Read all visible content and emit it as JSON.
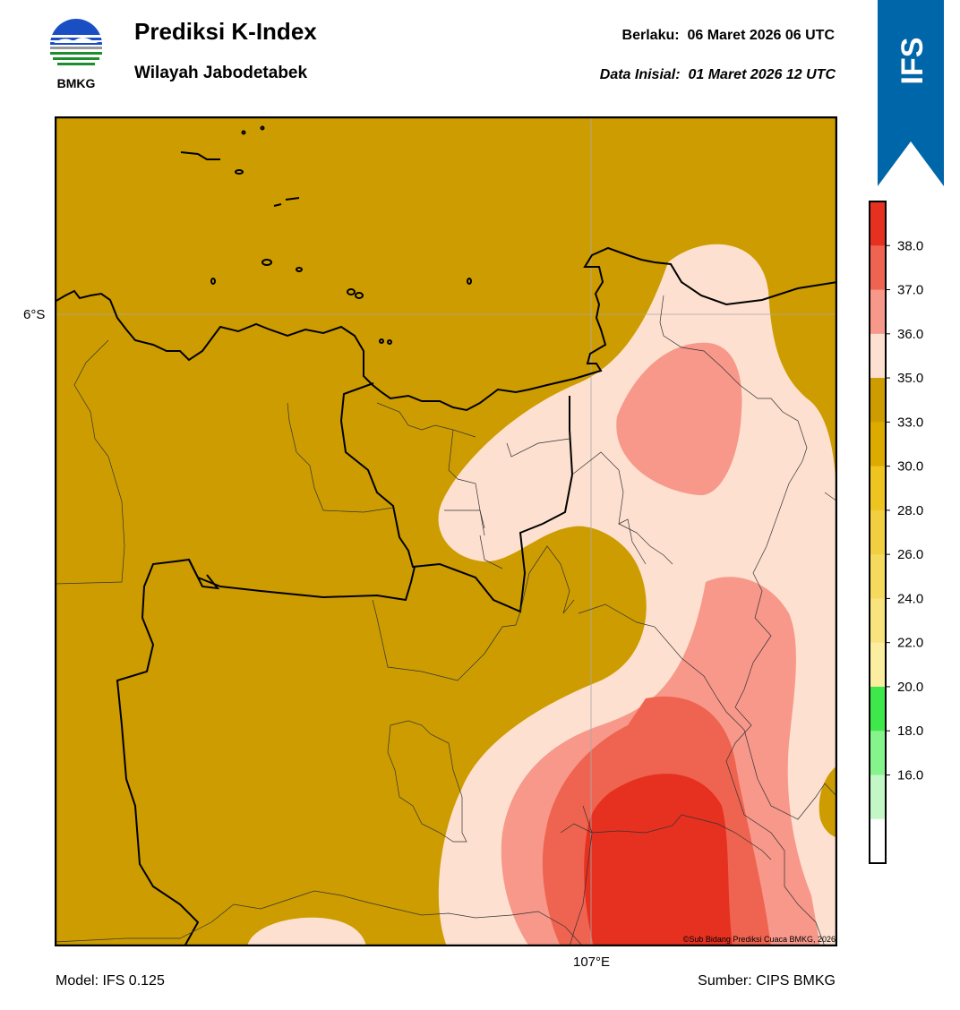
{
  "header": {
    "title": "Prediksi K-Index",
    "subtitle": "Wilayah Jabodetabek",
    "valid_label": "Berlaku:",
    "valid_value": "06 Maret 2026 06 UTC",
    "init_label": "Data Inisial:",
    "init_value": "01 Maret 2026 12 UTC"
  },
  "logo": {
    "text": "BMKG",
    "icon": "bmkg-logo-icon"
  },
  "ribbon": {
    "text": "IFS",
    "color": "#0066aa"
  },
  "map": {
    "lat_label": "6°S",
    "lon_label": "107°E",
    "credit": "©Sub Bidang Prediksi Cuaca BMKG, 2026",
    "background": "#cc9c00"
  },
  "footer": {
    "model": "Model: IFS 0.125",
    "source": "Sumber: CIPS BMKG"
  },
  "colorbar": {
    "ticks": [
      "38.0",
      "37.0",
      "36.0",
      "35.0",
      "33.0",
      "30.0",
      "28.0",
      "26.0",
      "24.0",
      "22.0",
      "20.0",
      "18.0",
      "16.0"
    ],
    "colors": [
      "#e63020",
      "#ef6450",
      "#f7988a",
      "#fde0cf",
      "#cc9c00",
      "#ddaa00",
      "#eec420",
      "#f2cf40",
      "#f5da5e",
      "#f8e37e",
      "#fbeea0",
      "#3fe84a",
      "#86f48c",
      "#c3f8c6",
      "#ffffff"
    ]
  }
}
